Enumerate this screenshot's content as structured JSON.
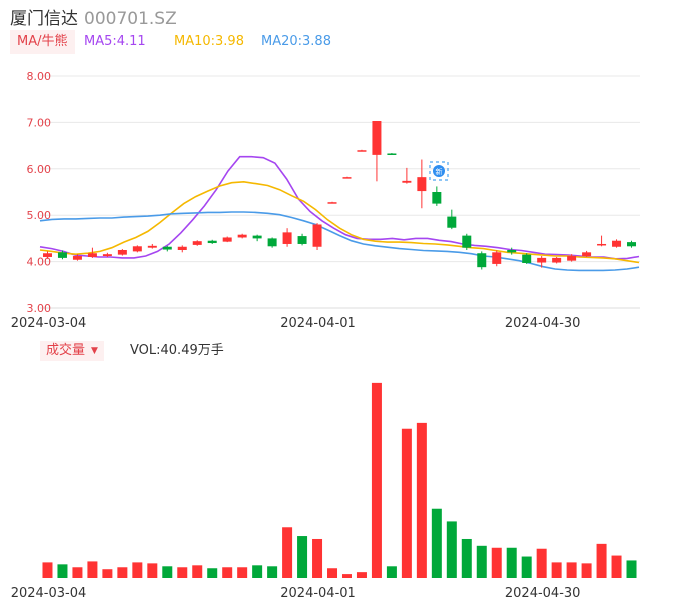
{
  "header": {
    "name": "厦门信达",
    "code": "000701.SZ"
  },
  "ma": {
    "button_label": "MA/牛熊",
    "items": [
      {
        "label": "MA5:4.11",
        "color": "#a546f0"
      },
      {
        "label": "MA10:3.98",
        "color": "#f5b800"
      },
      {
        "label": "MA20:3.88",
        "color": "#4a9be8"
      }
    ]
  },
  "volume": {
    "button_label": "成交量",
    "value_label": "VOL:40.49万手"
  },
  "colors": {
    "up": "#ff3333",
    "down": "#00a83a",
    "grid": "#e8e8e8"
  },
  "chart_data": {
    "type": "candlestick",
    "x_tick_labels": [
      "2024-03-04",
      "2024-04-01",
      "2024-04-30"
    ],
    "x_tick_index": [
      0,
      18,
      33
    ],
    "y_ticks": [
      "3.00",
      "4.00",
      "5.00",
      "6.00",
      "7.00",
      "8.00"
    ],
    "ylim": [
      3.0,
      8.0
    ],
    "volume_ylim": [
      0,
      205
    ],
    "candles": [
      {
        "o": 4.1,
        "c": 4.18,
        "h": 4.22,
        "l": 4.06,
        "v": 16
      },
      {
        "o": 4.2,
        "c": 4.08,
        "h": 4.24,
        "l": 4.05,
        "v": 14
      },
      {
        "o": 4.04,
        "c": 4.12,
        "h": 4.16,
        "l": 4.02,
        "v": 11
      },
      {
        "o": 4.1,
        "c": 4.18,
        "h": 4.3,
        "l": 4.08,
        "v": 17
      },
      {
        "o": 4.12,
        "c": 4.16,
        "h": 4.19,
        "l": 4.1,
        "v": 9
      },
      {
        "o": 4.15,
        "c": 4.25,
        "h": 4.27,
        "l": 4.13,
        "v": 11
      },
      {
        "o": 4.22,
        "c": 4.33,
        "h": 4.35,
        "l": 4.2,
        "v": 16
      },
      {
        "o": 4.3,
        "c": 4.34,
        "h": 4.38,
        "l": 4.28,
        "v": 15
      },
      {
        "o": 4.32,
        "c": 4.26,
        "h": 4.34,
        "l": 4.22,
        "v": 12
      },
      {
        "o": 4.25,
        "c": 4.32,
        "h": 4.35,
        "l": 4.2,
        "v": 11
      },
      {
        "o": 4.36,
        "c": 4.44,
        "h": 4.46,
        "l": 4.34,
        "v": 13
      },
      {
        "o": 4.45,
        "c": 4.4,
        "h": 4.47,
        "l": 4.38,
        "v": 10
      },
      {
        "o": 4.43,
        "c": 4.52,
        "h": 4.54,
        "l": 4.42,
        "v": 11
      },
      {
        "o": 4.52,
        "c": 4.58,
        "h": 4.6,
        "l": 4.5,
        "v": 11
      },
      {
        "o": 4.56,
        "c": 4.5,
        "h": 4.58,
        "l": 4.44,
        "v": 13
      },
      {
        "o": 4.5,
        "c": 4.33,
        "h": 4.52,
        "l": 4.3,
        "v": 12
      },
      {
        "o": 4.38,
        "c": 4.63,
        "h": 4.72,
        "l": 4.32,
        "v": 52
      },
      {
        "o": 4.55,
        "c": 4.38,
        "h": 4.6,
        "l": 4.35,
        "v": 43
      },
      {
        "o": 4.32,
        "c": 4.8,
        "h": 4.83,
        "l": 4.25,
        "v": 40
      },
      {
        "o": 5.27,
        "c": 5.28,
        "h": 5.29,
        "l": 5.26,
        "v": 10
      },
      {
        "o": 5.81,
        "c": 5.82,
        "h": 5.83,
        "l": 5.8,
        "v": 4
      },
      {
        "o": 6.39,
        "c": 6.4,
        "h": 6.41,
        "l": 6.38,
        "v": 6
      },
      {
        "o": 6.3,
        "c": 7.03,
        "h": 7.03,
        "l": 5.73,
        "v": 200
      },
      {
        "o": 6.33,
        "c": 6.32,
        "h": 6.34,
        "l": 6.31,
        "v": 12
      },
      {
        "o": 5.7,
        "c": 5.74,
        "h": 6.02,
        "l": 5.68,
        "v": 153
      },
      {
        "o": 5.52,
        "c": 5.82,
        "h": 6.2,
        "l": 5.15,
        "v": 159
      },
      {
        "o": 5.5,
        "c": 5.25,
        "h": 5.62,
        "l": 5.2,
        "v": 71
      },
      {
        "o": 4.97,
        "c": 4.73,
        "h": 5.12,
        "l": 4.7,
        "v": 58
      },
      {
        "o": 4.56,
        "c": 4.3,
        "h": 4.6,
        "l": 4.25,
        "v": 40
      },
      {
        "o": 4.18,
        "c": 3.88,
        "h": 4.22,
        "l": 3.83,
        "v": 33
      },
      {
        "o": 3.95,
        "c": 4.2,
        "h": 4.24,
        "l": 3.9,
        "v": 31
      },
      {
        "o": 4.25,
        "c": 4.2,
        "h": 4.3,
        "l": 4.15,
        "v": 31
      },
      {
        "o": 4.15,
        "c": 3.97,
        "h": 4.18,
        "l": 3.95,
        "v": 22
      },
      {
        "o": 3.98,
        "c": 4.08,
        "h": 4.12,
        "l": 3.87,
        "v": 30
      },
      {
        "o": 3.98,
        "c": 4.08,
        "h": 4.1,
        "l": 3.96,
        "v": 16
      },
      {
        "o": 4.02,
        "c": 4.12,
        "h": 4.16,
        "l": 4.0,
        "v": 16
      },
      {
        "o": 4.12,
        "c": 4.2,
        "h": 4.23,
        "l": 4.1,
        "v": 15
      },
      {
        "o": 4.36,
        "c": 4.38,
        "h": 4.56,
        "l": 4.33,
        "v": 35
      },
      {
        "o": 4.32,
        "c": 4.45,
        "h": 4.48,
        "l": 4.3,
        "v": 23
      },
      {
        "o": 4.42,
        "c": 4.33,
        "h": 4.45,
        "l": 4.3,
        "v": 18
      }
    ],
    "series": [
      {
        "name": "MA5",
        "color": "#a546f0",
        "values": [
          4.32,
          4.28,
          4.22,
          4.14,
          4.12,
          4.1,
          4.1,
          4.08,
          4.08,
          4.12,
          4.22,
          4.38,
          4.62,
          4.9,
          5.2,
          5.55,
          5.95,
          6.26,
          6.26,
          6.24,
          6.12,
          5.78,
          5.35,
          5.08,
          4.88,
          4.72,
          4.58,
          4.5,
          4.48,
          4.48,
          4.5,
          4.47,
          4.5,
          4.5,
          4.46,
          4.43,
          4.38,
          4.35,
          4.33,
          4.3,
          4.26,
          4.24,
          4.2,
          4.16,
          4.15,
          4.14,
          4.12,
          4.1,
          4.1,
          4.06,
          4.07,
          4.11
        ]
      },
      {
        "name": "MA10",
        "color": "#f5b800",
        "values": [
          4.25,
          4.22,
          4.18,
          4.16,
          4.18,
          4.22,
          4.3,
          4.42,
          4.52,
          4.65,
          4.84,
          5.05,
          5.25,
          5.4,
          5.52,
          5.63,
          5.7,
          5.72,
          5.68,
          5.64,
          5.55,
          5.42,
          5.3,
          5.12,
          4.9,
          4.72,
          4.58,
          4.48,
          4.44,
          4.42,
          4.42,
          4.41,
          4.39,
          4.38,
          4.36,
          4.33,
          4.3,
          4.28,
          4.24,
          4.2,
          4.18,
          4.16,
          4.14,
          4.12,
          4.12,
          4.1,
          4.09,
          4.08,
          4.06,
          4.02,
          3.98
        ]
      },
      {
        "name": "MA20",
        "color": "#4a9be8",
        "values": [
          4.88,
          4.91,
          4.92,
          4.92,
          4.93,
          4.94,
          4.94,
          4.96,
          4.97,
          4.98,
          5.0,
          5.03,
          5.04,
          5.05,
          5.06,
          5.06,
          5.07,
          5.07,
          5.06,
          5.04,
          5.01,
          4.95,
          4.88,
          4.8,
          4.68,
          4.56,
          4.45,
          4.38,
          4.34,
          4.31,
          4.28,
          4.26,
          4.24,
          4.23,
          4.22,
          4.2,
          4.17,
          4.12,
          4.1,
          4.06,
          4.02,
          3.96,
          3.89,
          3.84,
          3.82,
          3.81,
          3.81,
          3.81,
          3.82,
          3.84,
          3.88
        ]
      }
    ]
  }
}
